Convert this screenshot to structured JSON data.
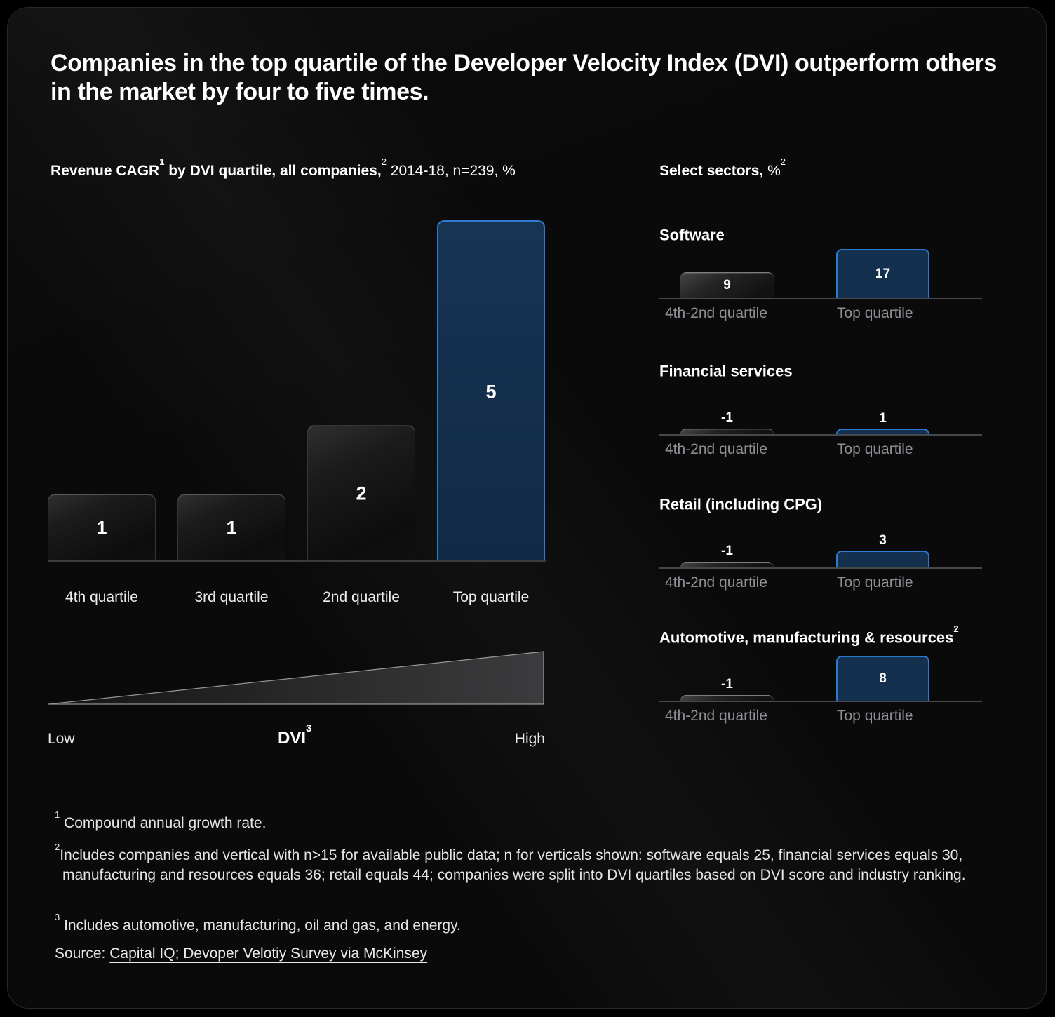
{
  "title": "Companies in the top quartile of the Developer Velocity Index (DVI) outperform others in the market by four to five times.",
  "left_chart_heading": {
    "bold1": "Revenue CAGR",
    "sup1": "1",
    "bold2": " by DVI quartile, all companies,",
    "sup2": "2",
    "regular": " 2014-18, n=239, %"
  },
  "sector_panel_heading": {
    "bold": "Select sectors,",
    "regular": " %",
    "sup": "2"
  },
  "chart_data": [
    {
      "type": "bar",
      "title": "Revenue CAGR by DVI quartile, all companies, 2014-18, n=239, %",
      "categories": [
        "4th quartile",
        "3rd quartile",
        "2nd quartile",
        "Top quartile"
      ],
      "values": [
        1,
        1,
        2,
        5
      ],
      "unit": "%",
      "highlight_category": "Top quartile",
      "ylim": [
        0,
        5
      ],
      "grid": false,
      "xaxis": {
        "low": "Low",
        "label": "DVI",
        "sup": "3",
        "high": "High"
      }
    },
    {
      "type": "bar",
      "title": "Software",
      "title_sup": "",
      "categories": [
        "4th-2nd quartile",
        "Top quartile"
      ],
      "values": [
        9,
        17
      ],
      "unit": "%",
      "highlight_category": "Top quartile"
    },
    {
      "type": "bar",
      "title": "Financial services",
      "title_sup": "",
      "categories": [
        "4th-2nd quartile",
        "Top quartile"
      ],
      "values": [
        -1,
        1
      ],
      "unit": "%",
      "highlight_category": "Top quartile"
    },
    {
      "type": "bar",
      "title": "Retail (including CPG)",
      "title_sup": "",
      "categories": [
        "4th-2nd quartile",
        "Top quartile"
      ],
      "values": [
        -1,
        3
      ],
      "unit": "%",
      "highlight_category": "Top quartile"
    },
    {
      "type": "bar",
      "title": "Automotive, manufacturing & resources",
      "title_sup": "2",
      "categories": [
        "4th-2nd quartile",
        "Top quartile"
      ],
      "values": [
        -1,
        8
      ],
      "unit": "%",
      "highlight_category": "Top quartile"
    }
  ],
  "footnotes": {
    "f1_sup": "1",
    "f1": "Compound annual growth rate.",
    "f2_sup": "2",
    "f2": "Includes companies and vertical with n>15 for available public data; n for verticals shown: software equals 25, financial services equals 30, manufacturing and resources equals 36; retail equals 44; companies were split into DVI quartiles based on DVI score and industry ranking.",
    "f3_sup": "3",
    "f3": "Includes automotive, manufacturing, oil and gas, and energy.",
    "source_label": "Source: ",
    "source_link": "Capital IQ; Devoper Velotiy Survey via McKinsey"
  },
  "colors": {
    "accent_blue_border": "#2e7ad1",
    "accent_blue_fill": "#14304f",
    "card_background": "#0a0a0b",
    "muted_label": "#8d9094"
  }
}
